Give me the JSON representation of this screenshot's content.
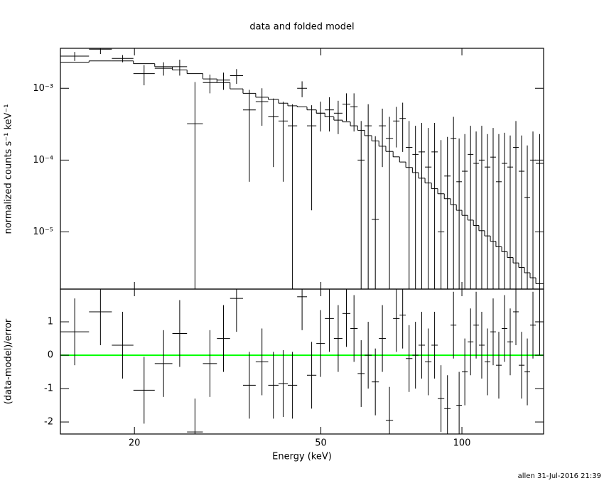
{
  "chart_data": [
    {
      "type": "errorbar",
      "title": "data and folded model",
      "ylabel": "normalized counts s⁻¹ keV⁻¹",
      "xscale": "log",
      "yscale": "log",
      "xlim": [
        13.9,
        149.4
      ],
      "xticks": [
        20,
        50,
        100
      ],
      "ylim": [
        1.6e-06,
        0.0036
      ],
      "yticks": [
        {
          "value": 0.001,
          "label": "10⁻³"
        },
        {
          "value": 0.0001,
          "label": "10⁻⁴"
        },
        {
          "value": 1e-05,
          "label": "10⁻⁵"
        }
      ],
      "bins": [
        13.9,
        16.0,
        17.9,
        19.9,
        22.1,
        24.1,
        25.9,
        28.0,
        30.0,
        32.0,
        34.1,
        36.3,
        38.6,
        40.6,
        42.5,
        44.5,
        46.7,
        48.9,
        51.0,
        53.3,
        55.6,
        57.8,
        59.9,
        62.0,
        64.2,
        66.5,
        68.8,
        71.3,
        73.6,
        75.9,
        78.4,
        80.8,
        83.4,
        86.1,
        88.8,
        91.7,
        94.6,
        97.3,
        100.0,
        102.9,
        105.8,
        108.7,
        111.8,
        115.0,
        118.2,
        121.6,
        125.0,
        128.6,
        132.2,
        136.0,
        139.8,
        143.8,
        149.4
      ],
      "data": {
        "color": "#000000",
        "values": [
          0.0028,
          0.0035,
          0.0026,
          0.0016,
          0.0019,
          0.002,
          0.00032,
          0.0012,
          0.0013,
          0.0015,
          0.0005,
          0.00065,
          0.0004,
          0.00035,
          0.0003,
          0.001,
          0.0003,
          0.00045,
          0.0005,
          0.00045,
          0.0006,
          0.00055,
          0.0001,
          0.0003,
          1.5e-05,
          0.0003,
          0.0002,
          0.00035,
          0.00038,
          0.00015,
          0.00012,
          0.00013,
          8e-05,
          0.00013,
          1e-05,
          6e-05,
          0.0002,
          5e-05,
          7e-05,
          0.00012,
          9e-05,
          0.0001,
          8e-05,
          0.00011,
          5e-05,
          9e-05,
          8e-05,
          0.00015,
          7e-05,
          3e-05,
          0.0001,
          9e-05
        ],
        "errors": [
          0.0004,
          0.0005,
          0.0003,
          0.0005,
          0.0004,
          0.0005,
          0.0009,
          0.00035,
          0.00035,
          0.00035,
          0.00045,
          0.00035,
          0.00032,
          0.0003,
          0.0003,
          0.00025,
          0.00028,
          0.0002,
          0.00025,
          0.00022,
          0.00025,
          0.0003,
          0.00025,
          0.0003,
          0.0002,
          0.00022,
          0.0002,
          0.0002,
          0.00025,
          0.0002,
          0.00018,
          0.0002,
          0.0002,
          0.0002,
          0.00018,
          0.00015,
          0.0002,
          0.00015,
          0.00016,
          0.00018,
          0.00016,
          0.0002,
          0.00015,
          0.00017,
          0.00018,
          0.00015,
          0.00014,
          0.0002,
          0.00015,
          0.00013,
          0.00015,
          0.00014
        ]
      },
      "model": {
        "color": "#000000",
        "values": [
          0.0023,
          0.0024,
          0.0024,
          0.0022,
          0.002,
          0.0018,
          0.0016,
          0.00135,
          0.0012,
          0.00098,
          0.00085,
          0.00075,
          0.0007,
          0.00062,
          0.00057,
          0.00055,
          0.0005,
          0.00045,
          0.0004,
          0.00036,
          0.00034,
          0.0003,
          0.00026,
          0.000219,
          0.000185,
          0.000156,
          0.000132,
          0.000111,
          9.4e-05,
          7.9e-05,
          6.7e-05,
          5.6e-05,
          4.8e-05,
          4e-05,
          3.4e-05,
          2.9e-05,
          2.4e-05,
          2e-05,
          1.7e-05,
          1.46e-05,
          1.23e-05,
          1.04e-05,
          8.8e-06,
          7.4e-06,
          6.2e-06,
          5.3e-06,
          4.4e-06,
          3.7e-06,
          3.2e-06,
          2.7e-06,
          2.3e-06,
          1.9e-06
        ]
      }
    },
    {
      "type": "errorbar",
      "ylabel": "(data-model)/error",
      "xlabel": "Energy (keV)",
      "xscale": "log",
      "xlim": [
        13.9,
        149.4
      ],
      "xticks": [
        20,
        50,
        100
      ],
      "ylim": [
        -2.36,
        1.98
      ],
      "yticks": [
        -2,
        -1,
        0,
        1
      ],
      "bins": [
        13.9,
        16.0,
        17.9,
        19.9,
        22.1,
        24.1,
        25.9,
        28.0,
        30.0,
        32.0,
        34.1,
        36.3,
        38.6,
        40.6,
        42.5,
        44.5,
        46.7,
        48.9,
        51.0,
        53.3,
        55.6,
        57.8,
        59.9,
        62.0,
        64.2,
        66.5,
        68.8,
        71.3,
        73.6,
        75.9,
        78.4,
        80.8,
        83.4,
        86.1,
        88.8,
        91.7,
        94.6,
        97.3,
        100.0,
        102.9,
        105.8,
        108.7,
        111.8,
        115.0,
        118.2,
        121.6,
        125.0,
        128.6,
        132.2,
        136.0,
        139.8,
        143.8,
        149.4
      ],
      "data": {
        "color": "#000000",
        "values": [
          0.7,
          1.3,
          0.3,
          -1.05,
          -0.25,
          0.65,
          -2.3,
          -0.25,
          0.5,
          1.7,
          -0.9,
          -0.2,
          -0.9,
          -0.85,
          -0.9,
          1.75,
          -0.6,
          0.35,
          1.1,
          0.5,
          1.25,
          0.8,
          -0.55,
          0.0,
          -0.8,
          0.5,
          -1.95,
          1.1,
          1.2,
          -0.1,
          0.0,
          0.3,
          -0.2,
          0.3,
          -1.3,
          -1.6,
          0.9,
          -1.5,
          -0.5,
          0.4,
          0.9,
          0.3,
          -0.2,
          0.7,
          -0.3,
          0.8,
          0.4,
          1.3,
          -0.3,
          -0.5,
          0.9,
          1.0
        ],
        "errors": [
          1,
          1,
          1,
          1,
          1,
          1,
          1,
          1,
          1,
          1,
          1,
          1,
          1,
          1,
          1,
          1,
          1,
          1,
          1,
          1,
          1,
          1,
          1,
          1,
          1,
          1,
          1,
          1,
          1,
          1,
          1,
          1,
          1,
          1,
          1,
          1,
          1,
          1,
          1,
          1,
          1,
          1,
          1,
          1,
          1,
          1,
          1,
          1,
          1,
          1,
          1,
          1
        ]
      },
      "reference": {
        "value": 0,
        "color": "#00ff00"
      }
    }
  ],
  "footer": "allen 31-Jul-2016 21:39"
}
